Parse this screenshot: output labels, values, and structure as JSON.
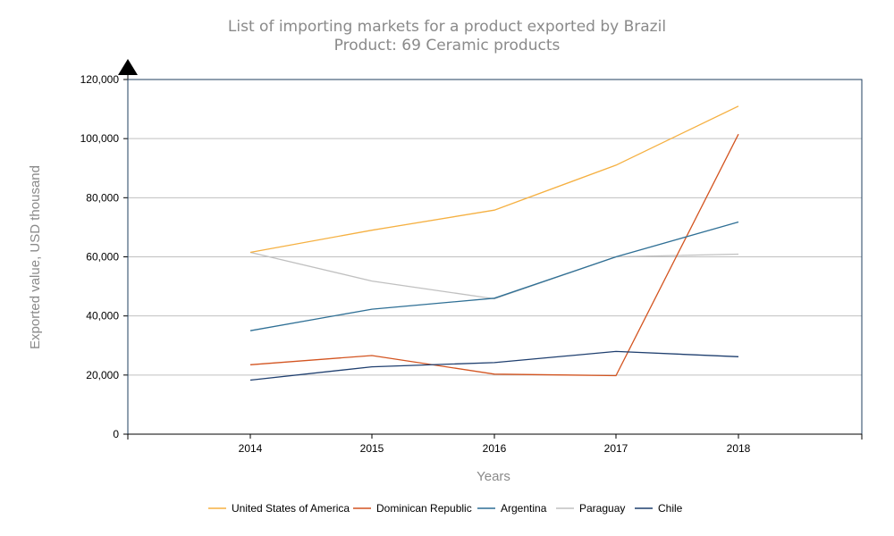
{
  "chart_data": {
    "type": "line",
    "title": "List of importing markets for a product exported by Brazil",
    "subtitle": "Product: 69 Ceramic products",
    "xlabel": "Years",
    "ylabel": "Exported value, USD thousand",
    "categories": [
      "2014",
      "2015",
      "2016",
      "2017",
      "2018"
    ],
    "ylim": [
      0,
      120000
    ],
    "yticks": [
      0,
      20000,
      40000,
      60000,
      80000,
      100000,
      120000
    ],
    "ytick_labels": [
      "0",
      "20,000",
      "40,000",
      "60,000",
      "80,000",
      "100,000",
      "120,000"
    ],
    "grid": true,
    "legend_position": "bottom",
    "series": [
      {
        "name": "United States of America",
        "color": "#f5b041",
        "values": [
          61500,
          69000,
          75800,
          91000,
          111000
        ]
      },
      {
        "name": "Dominican Republic",
        "color": "#d35420",
        "values": [
          23500,
          26600,
          20300,
          19800,
          101500
        ]
      },
      {
        "name": "Argentina",
        "color": "#2e6f95",
        "values": [
          35000,
          42300,
          46000,
          60000,
          71800
        ]
      },
      {
        "name": "Paraguay",
        "color": "#c0c0c0",
        "values": [
          61500,
          51800,
          45800,
          60000,
          60900
        ]
      },
      {
        "name": "Chile",
        "color": "#1f3f6f",
        "values": [
          18300,
          22800,
          24200,
          28000,
          26200
        ]
      }
    ]
  }
}
